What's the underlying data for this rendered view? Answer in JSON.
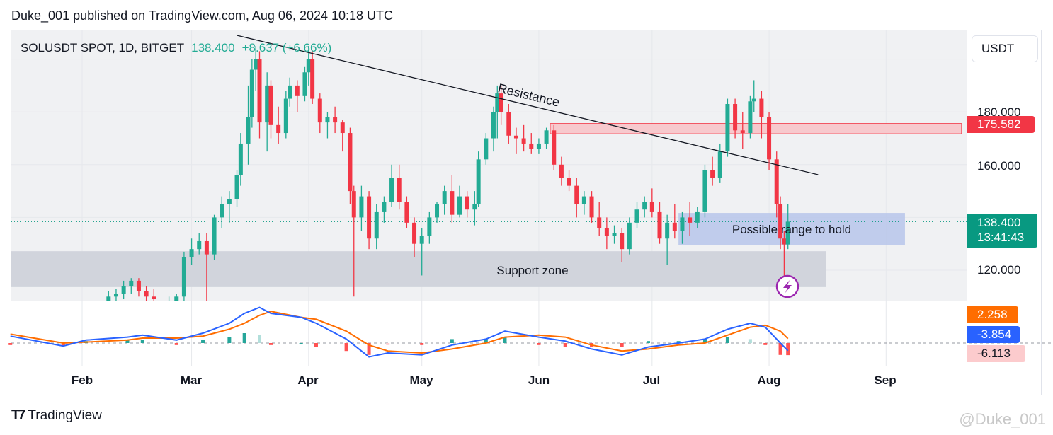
{
  "header": {
    "title": "Duke_001 published on TradingView.com, Aug 06, 2024 10:18 UTC"
  },
  "legend": {
    "symbol": "SOLUSDT SPOT, 1D, BITGET",
    "price": "138.400",
    "change": "+8.637 (+6.66%)"
  },
  "currency": "USDT",
  "price_axis": {
    "labels": [
      "180.000",
      "160.000",
      "120.000"
    ]
  },
  "tags": {
    "resistance_level": "175.582",
    "last_price": "138.400",
    "countdown": "13:41:43",
    "macd_signal": "2.258",
    "macd_line": "-3.854",
    "macd_hist": "-6.113"
  },
  "colors": {
    "up": "#22ab94",
    "down": "#f23645",
    "macd": "#2962ff",
    "signal": "#ff6d00",
    "resistance_zone": "#f7c9cd",
    "range_box": "#b7c6ea",
    "support_zone": "#d1d4dc",
    "tag_red": "#f23645",
    "tag_green": "#089981",
    "tag_orange": "#ff6d00",
    "tag_blue": "#2962ff",
    "tag_pink": "#fccbcd"
  },
  "footer": {
    "brand": "TradingView",
    "watermark": "@Duke_001"
  },
  "annotations": {
    "resistance": "Resistance",
    "support": "Support zone",
    "range": "Possible range to hold"
  },
  "chart_data": {
    "type": "candlestick",
    "title": "SOLUSDT SPOT, 1D, BITGET",
    "x_ticks": [
      "Feb",
      "Mar",
      "Apr",
      "May",
      "Jun",
      "Jul",
      "Aug",
      "Sep"
    ],
    "ylim": [
      108,
      212
    ],
    "y_ticks": [
      120,
      160,
      180
    ],
    "candles": [
      [
        "2024-02-08",
        104,
        112,
        102,
        110
      ],
      [
        "2024-02-10",
        110,
        113,
        108,
        111
      ],
      [
        "2024-02-12",
        111,
        116,
        109,
        114
      ],
      [
        "2024-02-14",
        114,
        117,
        111,
        116
      ],
      [
        "2024-02-16",
        116,
        117,
        110,
        112
      ],
      [
        "2024-02-18",
        112,
        114,
        108,
        110
      ],
      [
        "2024-02-20",
        110,
        113,
        107,
        109
      ],
      [
        "2024-02-24",
        105,
        110,
        104,
        108
      ],
      [
        "2024-02-26",
        108,
        111,
        106,
        110
      ],
      [
        "2024-02-28",
        110,
        127,
        108,
        125
      ],
      [
        "2024-03-01",
        125,
        132,
        122,
        128
      ],
      [
        "2024-03-03",
        128,
        134,
        126,
        131
      ],
      [
        "2024-03-05",
        131,
        134,
        108,
        126
      ],
      [
        "2024-03-07",
        126,
        141,
        124,
        140
      ],
      [
        "2024-03-09",
        140,
        148,
        136,
        145
      ],
      [
        "2024-03-11",
        145,
        150,
        138,
        147
      ],
      [
        "2024-03-13",
        147,
        158,
        144,
        156
      ],
      [
        "2024-03-14",
        156,
        172,
        152,
        168
      ],
      [
        "2024-03-16",
        168,
        190,
        160,
        178
      ],
      [
        "2024-03-17",
        178,
        200,
        174,
        196
      ],
      [
        "2024-03-18",
        196,
        205,
        188,
        200
      ],
      [
        "2024-03-19",
        200,
        203,
        170,
        176
      ],
      [
        "2024-03-21",
        176,
        195,
        165,
        190
      ],
      [
        "2024-03-22",
        190,
        192,
        170,
        175
      ],
      [
        "2024-03-24",
        175,
        182,
        168,
        172
      ],
      [
        "2024-03-26",
        172,
        188,
        170,
        185
      ],
      [
        "2024-03-27",
        185,
        193,
        182,
        190
      ],
      [
        "2024-03-29",
        190,
        192,
        180,
        186
      ],
      [
        "2024-03-31",
        186,
        197,
        184,
        195
      ],
      [
        "2024-04-01",
        195,
        205,
        190,
        200
      ],
      [
        "2024-04-02",
        200,
        203,
        183,
        185
      ],
      [
        "2024-04-04",
        185,
        187,
        172,
        176
      ],
      [
        "2024-04-06",
        176,
        180,
        170,
        178
      ],
      [
        "2024-04-08",
        178,
        182,
        172,
        176
      ],
      [
        "2024-04-10",
        176,
        177,
        165,
        172
      ],
      [
        "2024-04-12",
        172,
        174,
        145,
        150
      ],
      [
        "2024-04-13",
        150,
        152,
        110,
        140
      ],
      [
        "2024-04-15",
        140,
        152,
        135,
        148
      ],
      [
        "2024-04-17",
        148,
        150,
        128,
        132
      ],
      [
        "2024-04-19",
        132,
        145,
        128,
        142
      ],
      [
        "2024-04-21",
        142,
        148,
        138,
        146
      ],
      [
        "2024-04-23",
        146,
        160,
        144,
        155
      ],
      [
        "2024-04-25",
        155,
        160,
        143,
        146
      ],
      [
        "2024-04-27",
        146,
        148,
        136,
        138
      ],
      [
        "2024-04-29",
        138,
        140,
        125,
        130
      ],
      [
        "2024-05-01",
        130,
        136,
        118,
        133
      ],
      [
        "2024-05-03",
        133,
        142,
        130,
        140
      ],
      [
        "2024-05-05",
        140,
        146,
        138,
        145
      ],
      [
        "2024-05-07",
        145,
        152,
        141,
        150
      ],
      [
        "2024-05-09",
        150,
        156,
        138,
        141
      ],
      [
        "2024-05-11",
        141,
        152,
        140,
        148
      ],
      [
        "2024-05-13",
        148,
        150,
        140,
        143
      ],
      [
        "2024-05-15",
        143,
        150,
        137,
        145
      ],
      [
        "2024-05-16",
        145,
        165,
        144,
        162
      ],
      [
        "2024-05-18",
        162,
        172,
        160,
        170
      ],
      [
        "2024-05-20",
        170,
        182,
        165,
        180
      ],
      [
        "2024-05-21",
        180,
        190,
        170,
        187
      ],
      [
        "2024-05-22",
        187,
        190,
        175,
        180
      ],
      [
        "2024-05-24",
        180,
        183,
        168,
        171
      ],
      [
        "2024-05-26",
        171,
        174,
        164,
        170
      ],
      [
        "2024-05-28",
        170,
        175,
        165,
        168
      ],
      [
        "2024-05-30",
        168,
        172,
        164,
        166
      ],
      [
        "2024-06-01",
        166,
        170,
        164,
        168
      ],
      [
        "2024-06-03",
        168,
        174,
        166,
        173
      ],
      [
        "2024-06-05",
        173,
        175,
        158,
        160
      ],
      [
        "2024-06-07",
        160,
        163,
        152,
        155
      ],
      [
        "2024-06-09",
        155,
        158,
        150,
        152
      ],
      [
        "2024-06-11",
        152,
        155,
        140,
        145
      ],
      [
        "2024-06-13",
        145,
        150,
        141,
        148
      ],
      [
        "2024-06-15",
        148,
        150,
        138,
        140
      ],
      [
        "2024-06-17",
        140,
        146,
        133,
        136
      ],
      [
        "2024-06-19",
        136,
        140,
        128,
        133
      ],
      [
        "2024-06-21",
        133,
        137,
        130,
        134
      ],
      [
        "2024-06-23",
        134,
        136,
        123,
        128
      ],
      [
        "2024-06-25",
        128,
        140,
        126,
        138
      ],
      [
        "2024-06-27",
        138,
        146,
        136,
        143
      ],
      [
        "2024-06-29",
        143,
        148,
        140,
        146
      ],
      [
        "2024-07-01",
        146,
        151,
        140,
        142
      ],
      [
        "2024-07-03",
        142,
        146,
        130,
        132
      ],
      [
        "2024-07-05",
        132,
        141,
        122,
        138
      ],
      [
        "2024-07-07",
        138,
        145,
        132,
        135
      ],
      [
        "2024-07-09",
        135,
        142,
        130,
        140
      ],
      [
        "2024-07-11",
        140,
        146,
        133,
        138
      ],
      [
        "2024-07-13",
        138,
        144,
        136,
        142
      ],
      [
        "2024-07-15",
        142,
        160,
        140,
        158
      ],
      [
        "2024-07-17",
        158,
        163,
        152,
        155
      ],
      [
        "2024-07-19",
        155,
        168,
        153,
        165
      ],
      [
        "2024-07-21",
        165,
        185,
        163,
        183
      ],
      [
        "2024-07-23",
        183,
        185,
        170,
        173
      ],
      [
        "2024-07-25",
        173,
        180,
        166,
        172
      ],
      [
        "2024-07-27",
        172,
        186,
        170,
        184
      ],
      [
        "2024-07-28",
        184,
        192,
        180,
        185
      ],
      [
        "2024-07-30",
        185,
        188,
        170,
        178
      ],
      [
        "2024-08-01",
        178,
        180,
        158,
        162
      ],
      [
        "2024-08-03",
        162,
        165,
        140,
        145
      ],
      [
        "2024-08-04",
        145,
        148,
        128,
        132
      ],
      [
        "2024-08-05",
        132,
        135,
        110,
        129.763
      ],
      [
        "2024-08-06",
        129.763,
        145,
        128,
        138.4
      ]
    ],
    "last_price": 138.4,
    "resistance_line": {
      "from": [
        "2024-03-13",
        209
      ],
      "to": [
        "2024-08-14",
        156.2
      ],
      "label": "Resistance"
    },
    "resistance_zone": {
      "from": "2024-06-04",
      "to": "2024-09-21",
      "top": 175.582,
      "bottom": 171.7
    },
    "range_box": {
      "from": "2024-07-08",
      "to": "2024-09-06",
      "top": 141.7,
      "bottom": 129.4,
      "label": "Possible range to hold"
    },
    "support_zone": {
      "from": "2024-01-13",
      "to": "2024-08-16",
      "top": 127.2,
      "bottom": 113.6,
      "label": "Support zone"
    },
    "macd": {
      "dates": [
        "2024-01-13",
        "2024-01-27",
        "2024-02-02",
        "2024-02-13",
        "2024-02-17",
        "2024-02-26",
        "2024-03-04",
        "2024-03-11",
        "2024-03-15",
        "2024-03-19",
        "2024-03-22",
        "2024-03-30",
        "2024-04-03",
        "2024-04-11",
        "2024-04-17",
        "2024-04-22",
        "2024-05-01",
        "2024-05-09",
        "2024-05-18",
        "2024-05-23",
        "2024-06-01",
        "2024-06-08",
        "2024-06-15",
        "2024-06-23",
        "2024-06-30",
        "2024-07-08",
        "2024-07-15",
        "2024-07-21",
        "2024-07-27",
        "2024-07-31",
        "2024-08-04",
        "2024-08-06"
      ],
      "macd": [
        3.5,
        -1.5,
        1.5,
        3,
        4,
        1.5,
        5,
        10,
        15,
        18,
        15,
        13,
        10,
        2,
        -7,
        -5,
        -6,
        -1,
        2,
        6,
        3,
        1,
        -3,
        -6,
        -2,
        0,
        2,
        7,
        10,
        8,
        0,
        -3.854
      ],
      "signal": [
        4.5,
        0,
        0.5,
        1.5,
        2.5,
        2.5,
        3.5,
        7,
        10,
        14,
        16,
        13,
        12,
        6,
        -1,
        -4,
        -5,
        -3,
        0,
        3,
        4,
        3,
        -1,
        -4,
        -3,
        -1,
        0,
        4,
        8,
        9,
        6,
        2.258
      ],
      "hist": [
        -1,
        -1.5,
        1,
        1.5,
        1.5,
        -1,
        1.5,
        3,
        5,
        4,
        -1,
        0,
        -2,
        -4,
        -6,
        -1,
        -1,
        2,
        2,
        3,
        -1,
        -2,
        -2,
        -2,
        1,
        1,
        2,
        3,
        2,
        -1,
        -6,
        -6.113
      ]
    }
  }
}
